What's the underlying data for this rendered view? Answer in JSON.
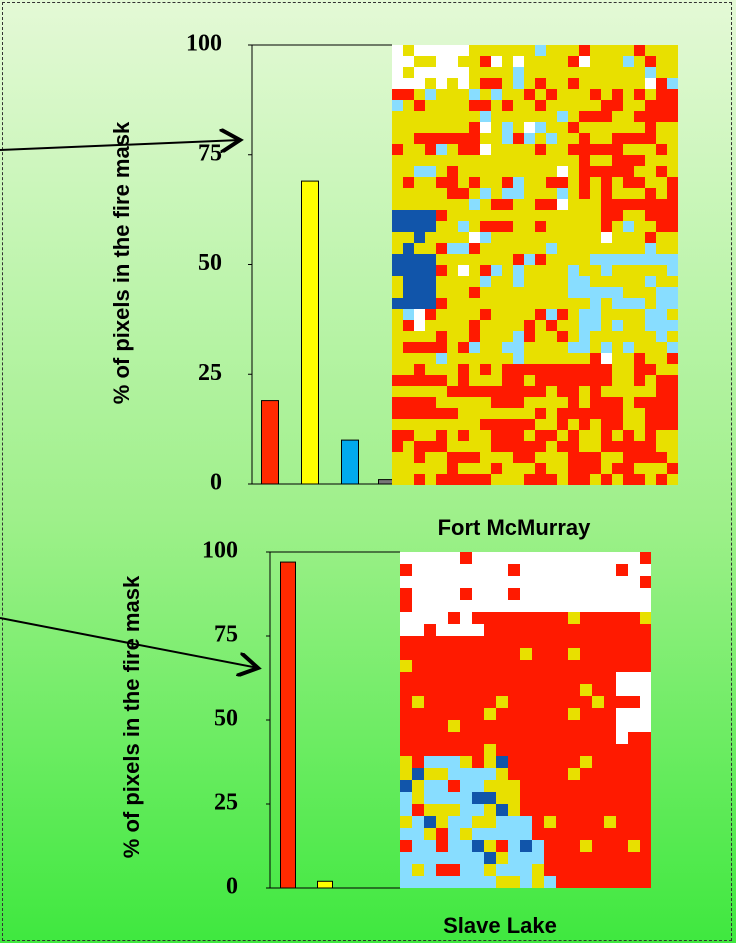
{
  "chart_data": [
    {
      "type": "bar",
      "title": "Fort McMurray",
      "y_label": "% of pixels in the fire mask",
      "categories": [
        null,
        null,
        null,
        null
      ],
      "values": [
        19,
        69,
        10,
        1
      ],
      "colors": [
        "#ff2a00",
        "#ffff00",
        "#00aaee",
        "#777777"
      ],
      "ylim": [
        0,
        100
      ],
      "yticks": [
        0,
        25,
        50,
        75,
        100
      ]
    },
    {
      "type": "bar",
      "title": "Slave Lake",
      "y_label": "% of pixels in the fire mask",
      "categories": [
        null,
        null
      ],
      "values": [
        97,
        2
      ],
      "colors": [
        "#ff2a00",
        "#ffff00"
      ],
      "ylim": [
        0,
        100
      ],
      "yticks": [
        0,
        25,
        50,
        75,
        100
      ]
    }
  ]
}
